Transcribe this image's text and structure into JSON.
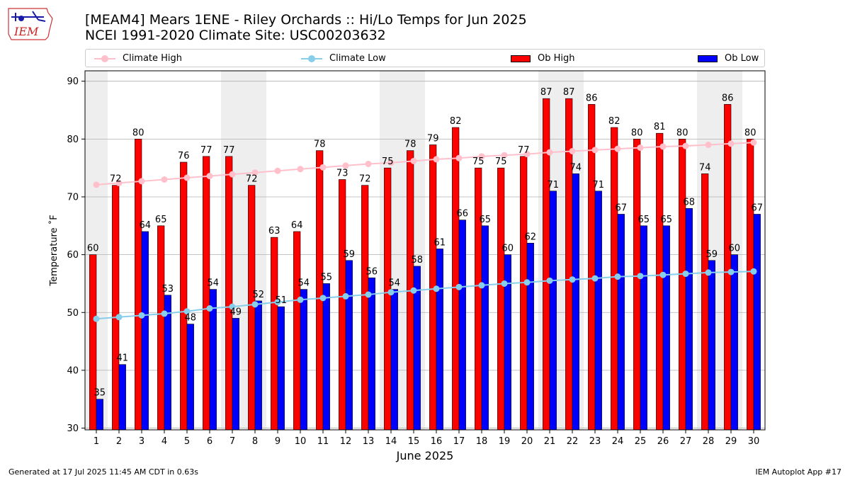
{
  "logo": {
    "text": "IEM"
  },
  "title": {
    "line1": "[MEAM4] Mears 1ENE - Riley Orchards :: Hi/Lo Temps for Jun 2025",
    "line2": "NCEI 1991-2020 Climate Site: USC00203632"
  },
  "legend": [
    {
      "label": "Climate High",
      "kind": "line",
      "color": "#ffc0cb"
    },
    {
      "label": "Climate Low",
      "kind": "line",
      "color": "#87ceeb"
    },
    {
      "label": "Ob High",
      "kind": "bar",
      "color": "#ff0000"
    },
    {
      "label": "Ob Low",
      "kind": "bar",
      "color": "#0000ff"
    }
  ],
  "colors": {
    "ob_high": "#ff0000",
    "ob_low": "#0000ff",
    "climate_high": "#ffc0cb",
    "climate_low": "#87ceeb",
    "weekend_band": "#eeeeee",
    "grid": "#b0b0b0"
  },
  "chart_data": {
    "type": "bar",
    "xlabel": "June 2025",
    "ylabel": "Temperature ˚F",
    "ylim": [
      29.7,
      91.8
    ],
    "yticks": [
      30,
      40,
      50,
      60,
      70,
      80,
      90
    ],
    "grid": "horizontal",
    "legend_position": "top",
    "categories": [
      "1",
      "2",
      "3",
      "4",
      "5",
      "6",
      "7",
      "8",
      "9",
      "10",
      "11",
      "12",
      "13",
      "14",
      "15",
      "16",
      "17",
      "18",
      "19",
      "20",
      "21",
      "22",
      "23",
      "24",
      "25",
      "26",
      "27",
      "28",
      "29",
      "30"
    ],
    "weekend_days": [
      1,
      7,
      8,
      14,
      15,
      21,
      22,
      28,
      29
    ],
    "series": [
      {
        "name": "Ob High",
        "kind": "bar",
        "values": [
          60,
          72,
          80,
          65,
          76,
          77,
          77,
          72,
          63,
          64,
          78,
          73,
          72,
          75,
          78,
          79,
          82,
          75,
          75,
          77,
          87,
          87,
          86,
          82,
          80,
          81,
          80,
          74,
          86,
          80
        ],
        "labels": [
          "60",
          "72",
          "80",
          "65",
          "76",
          "77",
          "77",
          "72",
          "63",
          "64",
          "78",
          "73",
          "72",
          "75",
          "78",
          "79",
          "82",
          "75",
          "75",
          "77",
          "87",
          "87",
          "86",
          "82",
          "80",
          "81",
          "80",
          "74",
          "86",
          "80"
        ]
      },
      {
        "name": "Ob Low",
        "kind": "bar",
        "values": [
          35,
          41,
          64,
          53,
          48,
          54,
          49,
          52,
          51,
          54,
          55,
          59,
          56,
          54,
          58,
          61,
          66,
          65,
          60,
          62,
          71,
          74,
          71,
          67,
          65,
          65,
          68,
          59,
          60,
          67
        ],
        "labels": [
          "35",
          "41",
          "64",
          "53",
          "48",
          "54",
          "49",
          "52",
          "51",
          "54",
          "55",
          "59",
          "56",
          "54",
          "58",
          "61",
          "66",
          "65",
          "60",
          "62",
          "71",
          "74",
          "71",
          "67",
          "65",
          "65",
          "68",
          "59",
          "60",
          "67"
        ]
      },
      {
        "name": "Climate High",
        "kind": "line",
        "values": [
          72.1,
          72.4,
          72.7,
          73.0,
          73.3,
          73.6,
          73.9,
          74.2,
          74.5,
          74.8,
          75.1,
          75.4,
          75.7,
          75.9,
          76.2,
          76.5,
          76.7,
          77.0,
          77.2,
          77.4,
          77.7,
          77.9,
          78.1,
          78.3,
          78.5,
          78.7,
          78.8,
          79.0,
          79.2,
          79.4
        ]
      },
      {
        "name": "Climate Low",
        "kind": "line",
        "values": [
          48.9,
          49.2,
          49.5,
          49.8,
          50.2,
          50.7,
          51.0,
          51.4,
          51.8,
          52.2,
          52.5,
          52.8,
          53.1,
          53.5,
          53.8,
          54.1,
          54.4,
          54.7,
          55.0,
          55.2,
          55.5,
          55.7,
          55.9,
          56.2,
          56.3,
          56.5,
          56.7,
          56.9,
          57.0,
          57.1
        ]
      }
    ]
  },
  "footer": {
    "left": "Generated at 17 Jul 2025 11:45 AM CDT in 0.63s",
    "right": "IEM Autoplot App #17"
  }
}
